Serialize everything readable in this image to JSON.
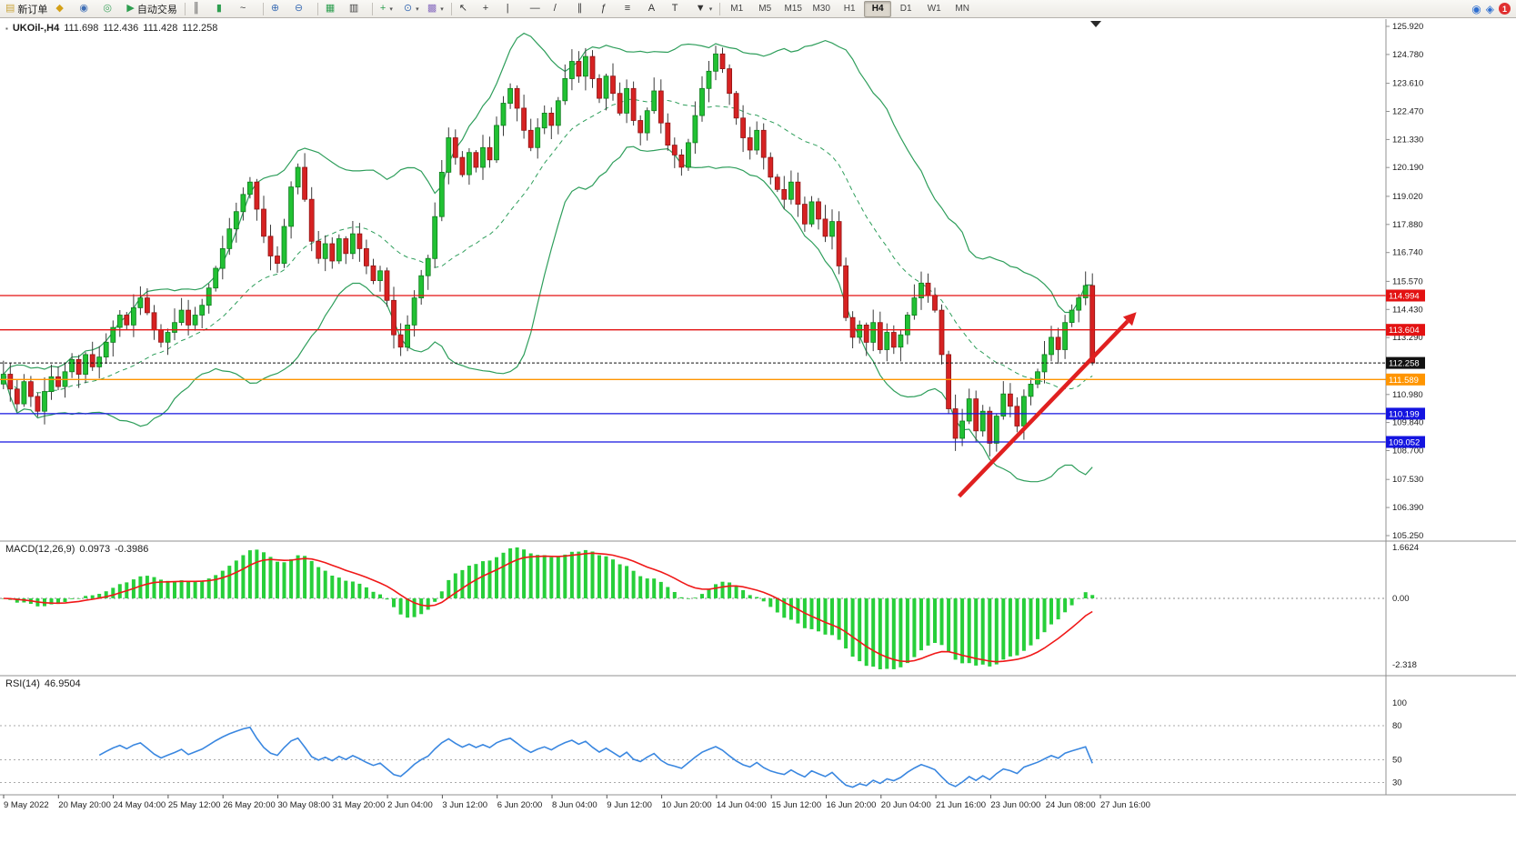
{
  "toolbar": {
    "items": [
      {
        "name": "new-order-button",
        "glyph": "▤",
        "color": "#caa53d",
        "label": "新订单"
      },
      {
        "name": "charts-button",
        "glyph": "◆",
        "color": "#d4a017"
      },
      {
        "name": "profiles-button",
        "glyph": "◉",
        "color": "#3f6fb5"
      },
      {
        "name": "alerts-button",
        "glyph": "◎",
        "color": "#43a564"
      },
      {
        "name": "auto-trading-button",
        "glyph": "▶",
        "color": "#2d9e4f",
        "label": "自动交易"
      },
      {
        "sep": true
      },
      {
        "name": "bar-chart-button",
        "glyph": "║",
        "color": "#444444"
      },
      {
        "name": "candlestick-chart-button",
        "glyph": "▮",
        "color": "#2d9e4f"
      },
      {
        "name": "line-chart-button",
        "glyph": "~",
        "color": "#444444"
      },
      {
        "sep": true
      },
      {
        "name": "zoom-in-button",
        "glyph": "⊕",
        "color": "#3f6fb5"
      },
      {
        "name": "zoom-out-button",
        "glyph": "⊖",
        "color": "#3f6fb5"
      },
      {
        "sep": true
      },
      {
        "name": "tile-windows-button",
        "glyph": "▦",
        "color": "#2d9e4f"
      },
      {
        "name": "cascade-windows-button",
        "glyph": "▥",
        "color": "#444444"
      },
      {
        "sep": true
      },
      {
        "name": "indicators-button",
        "glyph": "+",
        "color": "#2d9e4f",
        "dropdown": true
      },
      {
        "name": "periods-menu-button",
        "glyph": "⊙",
        "color": "#3f6fb5",
        "dropdown": true
      },
      {
        "name": "templates-button",
        "glyph": "▩",
        "color": "#8a6fc0",
        "dropdown": true
      },
      {
        "sep": true
      },
      {
        "name": "cursor-button",
        "glyph": "↖",
        "color": "#333333"
      },
      {
        "name": "crosshair-button",
        "glyph": "+",
        "color": "#333333"
      },
      {
        "name": "vertical-line-button",
        "glyph": "|",
        "color": "#333333"
      },
      {
        "name": "horizontal-line-button",
        "glyph": "—",
        "color": "#333333"
      },
      {
        "name": "trendline-button",
        "glyph": "/",
        "color": "#333333"
      },
      {
        "name": "channel-button",
        "glyph": "∥",
        "color": "#333333"
      },
      {
        "name": "fibonacci-button",
        "glyph": "ƒ",
        "color": "#333333"
      },
      {
        "name": "shapes-button",
        "glyph": "≡",
        "color": "#333333"
      },
      {
        "name": "text-button",
        "glyph": "A",
        "color": "#333333"
      },
      {
        "name": "label-button",
        "glyph": "T",
        "color": "#333333"
      },
      {
        "name": "arrows-button",
        "glyph": "▼",
        "color": "#333333",
        "dropdown": true
      },
      {
        "sep": true
      }
    ],
    "timeframes": [
      "M1",
      "M5",
      "M15",
      "M30",
      "H1",
      "H4",
      "D1",
      "W1",
      "MN"
    ],
    "active_timeframe": "H4",
    "right_icons": [
      {
        "name": "community-icon",
        "glyph": "◉",
        "color": "#2f6fd0"
      },
      {
        "name": "search-icon",
        "glyph": "◈",
        "color": "#2f6fd0"
      }
    ],
    "badge_count": "1"
  },
  "chart_header": {
    "symbol_period": "UKOil-,H4",
    "open": "111.698",
    "high": "112.436",
    "low": "111.428",
    "close": "112.258"
  },
  "indicator_headers": {
    "macd_label": "MACD(12,26,9)",
    "macd_value": "0.0973",
    "macd_signal": "-0.3986",
    "rsi_label": "RSI(14)",
    "rsi_value": "46.9504"
  },
  "chart_data": {
    "type": "candlestick",
    "symbol": "UKOil-",
    "period": "H4",
    "current_bar": {
      "open": 111.698,
      "high": 112.436,
      "low": 111.428,
      "close": 112.258
    },
    "price_axis": {
      "min": 105.25,
      "max": 125.92,
      "labels": [
        "125.920",
        "124.780",
        "123.610",
        "122.470",
        "121.330",
        "120.190",
        "119.020",
        "117.880",
        "116.740",
        "115.570",
        "114.430",
        "113.290",
        "112.150",
        "110.980",
        "109.840",
        "108.700",
        "107.530",
        "106.390",
        "105.250"
      ]
    },
    "closes": [
      111.8,
      111.2,
      110.6,
      111.5,
      110.9,
      110.3,
      111.1,
      111.7,
      111.3,
      111.9,
      112.4,
      111.8,
      112.6,
      112.1,
      112.5,
      113.1,
      113.7,
      114.2,
      113.8,
      114.5,
      114.9,
      114.3,
      113.6,
      113.1,
      113.5,
      113.9,
      114.4,
      113.8,
      114.2,
      114.6,
      115.3,
      116.1,
      116.9,
      117.7,
      118.4,
      119.1,
      119.6,
      118.5,
      117.4,
      116.6,
      116.3,
      117.8,
      119.4,
      120.2,
      118.9,
      117.2,
      116.5,
      117.1,
      116.4,
      117.3,
      116.7,
      117.5,
      116.9,
      116.2,
      115.6,
      116.0,
      114.8,
      113.4,
      112.9,
      113.8,
      114.9,
      115.8,
      116.5,
      118.2,
      120.0,
      121.4,
      120.6,
      119.9,
      120.8,
      120.2,
      121.0,
      120.5,
      121.9,
      122.8,
      123.4,
      122.6,
      121.7,
      121.0,
      121.8,
      122.4,
      121.9,
      122.9,
      123.8,
      124.5,
      123.9,
      124.7,
      123.8,
      123.0,
      123.9,
      123.2,
      122.4,
      123.4,
      122.1,
      121.6,
      122.5,
      123.3,
      122.0,
      121.1,
      120.7,
      120.2,
      121.2,
      122.3,
      123.4,
      124.1,
      124.8,
      124.2,
      123.2,
      122.2,
      121.4,
      120.9,
      121.7,
      120.6,
      119.8,
      119.3,
      118.9,
      119.6,
      118.7,
      117.9,
      118.8,
      118.1,
      117.4,
      118.0,
      116.2,
      114.1,
      113.3,
      113.8,
      113.1,
      113.9,
      112.8,
      113.5,
      112.9,
      113.4,
      114.2,
      114.9,
      115.5,
      115.0,
      114.4,
      112.6,
      110.4,
      109.2,
      109.9,
      110.8,
      109.5,
      110.3,
      109.0,
      110.1,
      111.0,
      110.5,
      109.7,
      110.9,
      111.4,
      111.9,
      112.6,
      113.3,
      112.8,
      113.9,
      114.4,
      114.9,
      115.4,
      112.258
    ],
    "indicators": {
      "bollinger": {
        "period": 20,
        "deviation": 2,
        "color": "#2e9e5b"
      },
      "macd": {
        "fast": 12,
        "slow": 26,
        "signal": 9,
        "current": 0.0973,
        "current_signal": -0.3986,
        "scale_labels": [
          "1.6624",
          "0.00",
          "-2.318"
        ],
        "scale_max": 1.6624,
        "scale_min": -2.318,
        "histogram_color": "#27cf3a",
        "signal_color": "#f01818"
      },
      "rsi": {
        "period": 14,
        "current": 46.9504,
        "scale_labels": [
          "100",
          "80",
          "50",
          "30"
        ],
        "scale_values": [
          100,
          80,
          50,
          30
        ],
        "levels": [
          80,
          50,
          30
        ],
        "color": "#3a87e0"
      }
    },
    "levels": [
      {
        "price": 114.994,
        "label": "114.994",
        "color": "#e31212",
        "style": "solid"
      },
      {
        "price": 113.604,
        "label": "113.604",
        "color": "#e31212",
        "style": "solid"
      },
      {
        "price": 112.258,
        "label": "112.258",
        "color": "#111111",
        "style": "current"
      },
      {
        "price": 111.589,
        "label": "111.589",
        "color": "#ff9500",
        "style": "solid"
      },
      {
        "price": 110.199,
        "label": "110.199",
        "color": "#1414e0",
        "style": "solid"
      },
      {
        "price": 109.052,
        "label": "109.052",
        "color": "#1414e0",
        "style": "solid"
      }
    ],
    "annotations": [
      {
        "type": "trend-arrow",
        "from_x_frac": 0.692,
        "from_price": 106.85,
        "to_x_frac": 0.8136,
        "to_price": 113.95,
        "color": "#e02020"
      }
    ],
    "time_axis": [
      "9 May 2022",
      "20 May 20:00",
      "24 May 04:00",
      "25 May 12:00",
      "26 May 20:00",
      "30 May 08:00",
      "31 May 20:00",
      "2 Jun 04:00",
      "3 Jun 12:00",
      "6 Jun 20:00",
      "8 Jun 04:00",
      "9 Jun 12:00",
      "10 Jun 20:00",
      "14 Jun 04:00",
      "15 Jun 12:00",
      "16 Jun 20:00",
      "20 Jun 04:00",
      "21 Jun 16:00",
      "23 Jun 00:00",
      "24 Jun 08:00",
      "27 Jun 16:00"
    ]
  }
}
